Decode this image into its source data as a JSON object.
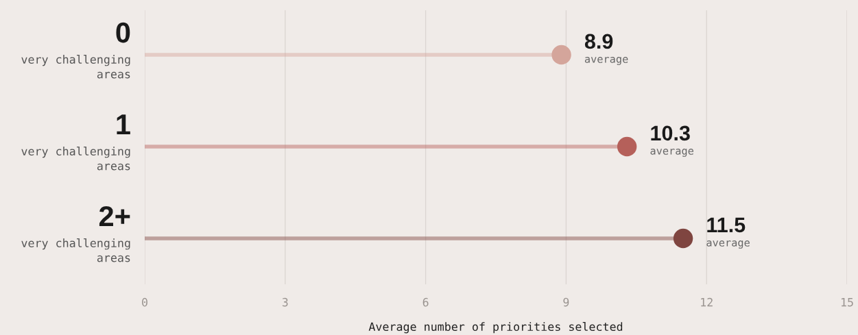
{
  "chart_data": {
    "type": "lollipop",
    "orientation": "horizontal",
    "xlabel": "Average number of priorities selected",
    "categories": [
      "0\nvery challenging\nareas",
      "1\nvery challenging\nareas",
      "2+\nvery challenging\nareas"
    ],
    "values": [
      8.9,
      10.3,
      11.5
    ],
    "colors": [
      "#d4a59b",
      "#b5605a",
      "#7f4540"
    ],
    "value_labels": [
      "8.9\naverage",
      "10.3\naverage",
      "11.5\naverage"
    ],
    "xlim": [
      0,
      15
    ],
    "xticks": [
      0,
      3,
      6,
      9,
      12,
      15
    ],
    "grid": "x",
    "marker": "circle"
  }
}
